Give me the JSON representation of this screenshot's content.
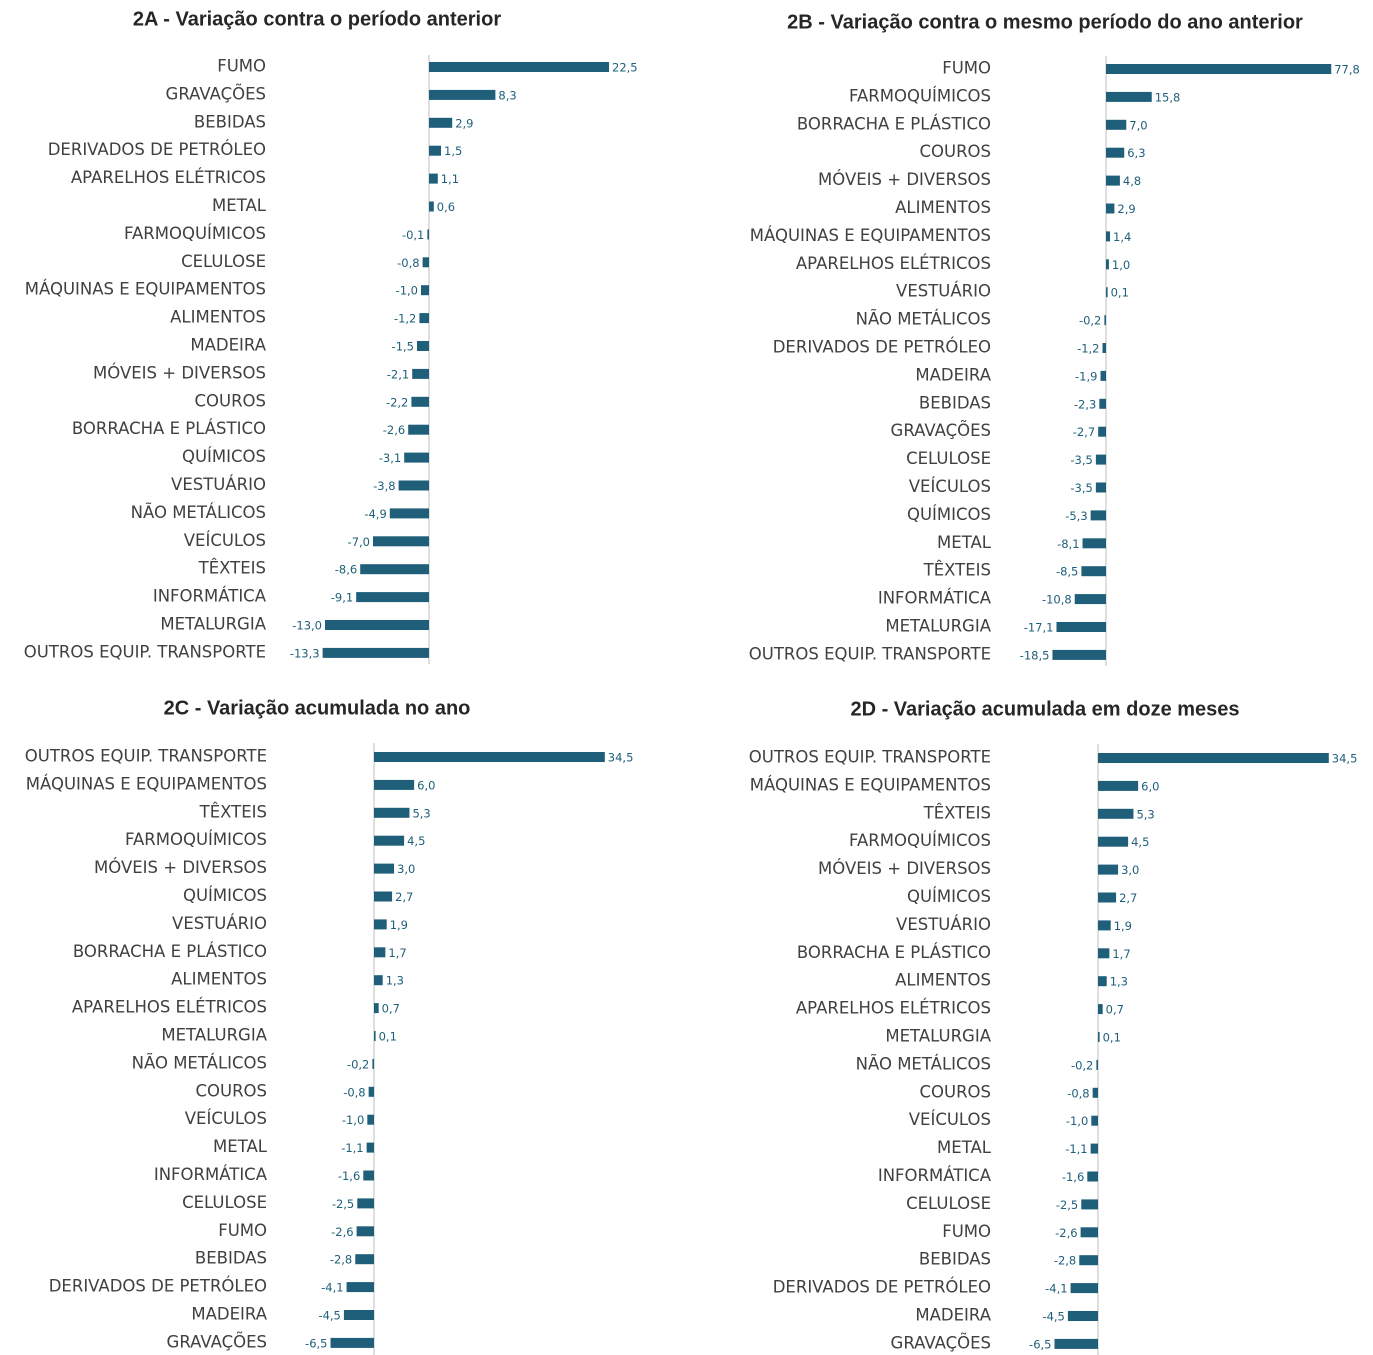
{
  "colors": {
    "bar": "#1f5f7a",
    "label": "#1f5f7a",
    "text": "#404040",
    "axis": "#bfbfbf"
  },
  "chart_data": [
    {
      "type": "bar",
      "orientation": "horizontal",
      "title": "2A - Variação contra o período anterior",
      "categories": [
        "FUMO",
        "GRAVAÇÕES",
        "BEBIDAS",
        "DERIVADOS DE PETRÓLEO",
        "APARELHOS ELÉTRICOS",
        "METAL",
        "FARMOQUÍMICOS",
        "CELULOSE",
        "MÁQUINAS E EQUIPAMENTOS",
        "ALIMENTOS",
        "MADEIRA",
        "MÓVEIS + DIVERSOS",
        "COUROS",
        "BORRACHA E PLÁSTICO",
        "QUÍMICOS",
        "VESTUÁRIO",
        "NÃO METÁLICOS",
        "VEÍCULOS",
        "TÊXTEIS",
        "INFORMÁTICA",
        "METALURGIA",
        "OUTROS EQUIP. TRANSPORTE"
      ],
      "values": [
        22.5,
        8.3,
        2.9,
        1.5,
        1.1,
        0.6,
        -0.1,
        -0.8,
        -1.0,
        -1.2,
        -1.5,
        -2.1,
        -2.2,
        -2.6,
        -3.1,
        -3.8,
        -4.9,
        -7.0,
        -8.6,
        -9.1,
        -13.0,
        -13.3
      ],
      "value_labels": [
        "22,5",
        "8,3",
        "2,9",
        "1,5",
        "1,1",
        "0,6",
        "-0,1",
        "-0,8",
        "-1,0",
        "-1,2",
        "-1,5",
        "-2,1",
        "-2,2",
        "-2,6",
        "-3,1",
        "-3,8",
        "-4,9",
        "-7,0",
        "-8,6",
        "-9,1",
        "-13,0",
        "-13,3"
      ],
      "grid": false,
      "legend": "none"
    },
    {
      "type": "bar",
      "orientation": "horizontal",
      "title": "2B - Variação contra o mesmo período do ano anterior",
      "categories": [
        "FUMO",
        "FARMOQUÍMICOS",
        "BORRACHA E PLÁSTICO",
        "COUROS",
        "MÓVEIS + DIVERSOS",
        "ALIMENTOS",
        "MÁQUINAS E EQUIPAMENTOS",
        "APARELHOS ELÉTRICOS",
        "VESTUÁRIO",
        "NÃO METÁLICOS",
        "DERIVADOS DE PETRÓLEO",
        "MADEIRA",
        "BEBIDAS",
        "GRAVAÇÕES",
        "CELULOSE",
        "VEÍCULOS",
        "QUÍMICOS",
        "METAL",
        "TÊXTEIS",
        "INFORMÁTICA",
        "METALURGIA",
        "OUTROS EQUIP. TRANSPORTE"
      ],
      "values": [
        77.8,
        15.8,
        7.0,
        6.3,
        4.8,
        2.9,
        1.4,
        1.0,
        0.1,
        -0.2,
        -1.2,
        -1.9,
        -2.3,
        -2.7,
        -3.5,
        -3.5,
        -5.3,
        -8.1,
        -8.5,
        -10.8,
        -17.1,
        -18.5
      ],
      "value_labels": [
        "77,8",
        "15,8",
        "7,0",
        "6,3",
        "4,8",
        "2,9",
        "1,4",
        "1,0",
        "0,1",
        "-0,2",
        "-1,2",
        "-1,9",
        "-2,3",
        "-2,7",
        "-3,5",
        "-3,5",
        "-5,3",
        "-8,1",
        "-8,5",
        "-10,8",
        "-17,1",
        "-18,5"
      ],
      "grid": false,
      "legend": "none"
    },
    {
      "type": "bar",
      "orientation": "horizontal",
      "title": "2C - Variação acumulada no ano",
      "categories": [
        "OUTROS EQUIP. TRANSPORTE",
        "MÁQUINAS E EQUIPAMENTOS",
        "TÊXTEIS",
        "FARMOQUÍMICOS",
        "MÓVEIS + DIVERSOS",
        "QUÍMICOS",
        "VESTUÁRIO",
        "BORRACHA E PLÁSTICO",
        "ALIMENTOS",
        "APARELHOS ELÉTRICOS",
        "METALURGIA",
        "NÃO METÁLICOS",
        "COUROS",
        "VEÍCULOS",
        "METAL",
        "INFORMÁTICA",
        "CELULOSE",
        "FUMO",
        "BEBIDAS",
        "DERIVADOS DE PETRÓLEO",
        "MADEIRA",
        "GRAVAÇÕES"
      ],
      "values": [
        34.5,
        6.0,
        5.3,
        4.5,
        3.0,
        2.7,
        1.9,
        1.7,
        1.3,
        0.7,
        0.1,
        -0.2,
        -0.8,
        -1.0,
        -1.1,
        -1.6,
        -2.5,
        -2.6,
        -2.8,
        -4.1,
        -4.5,
        -6.5
      ],
      "value_labels": [
        "34,5",
        "6,0",
        "5,3",
        "4,5",
        "3,0",
        "2,7",
        "1,9",
        "1,7",
        "1,3",
        "0,7",
        "0,1",
        "-0,2",
        "-0,8",
        "-1,0",
        "-1,1",
        "-1,6",
        "-2,5",
        "-2,6",
        "-2,8",
        "-4,1",
        "-4,5",
        "-6,5"
      ],
      "grid": false,
      "legend": "none"
    },
    {
      "type": "bar",
      "orientation": "horizontal",
      "title": "2D - Variação acumulada em doze meses",
      "categories": [
        "OUTROS EQUIP. TRANSPORTE",
        "MÁQUINAS E EQUIPAMENTOS",
        "TÊXTEIS",
        "FARMOQUÍMICOS",
        "MÓVEIS + DIVERSOS",
        "QUÍMICOS",
        "VESTUÁRIO",
        "BORRACHA E PLÁSTICO",
        "ALIMENTOS",
        "APARELHOS ELÉTRICOS",
        "METALURGIA",
        "NÃO METÁLICOS",
        "COUROS",
        "VEÍCULOS",
        "METAL",
        "INFORMÁTICA",
        "CELULOSE",
        "FUMO",
        "BEBIDAS",
        "DERIVADOS DE PETRÓLEO",
        "MADEIRA",
        "GRAVAÇÕES"
      ],
      "values": [
        34.5,
        6.0,
        5.3,
        4.5,
        3.0,
        2.7,
        1.9,
        1.7,
        1.3,
        0.7,
        0.1,
        -0.2,
        -0.8,
        -1.0,
        -1.1,
        -1.6,
        -2.5,
        -2.6,
        -2.8,
        -4.1,
        -4.5,
        -6.5
      ],
      "value_labels": [
        "34,5",
        "6,0",
        "5,3",
        "4,5",
        "3,0",
        "2,7",
        "1,9",
        "1,7",
        "1,3",
        "0,7",
        "0,1",
        "-0,2",
        "-0,8",
        "-1,0",
        "-1,1",
        "-1,6",
        "-2,5",
        "-2,6",
        "-2,8",
        "-4,1",
        "-4,5",
        "-6,5"
      ],
      "grid": false,
      "legend": "none"
    }
  ]
}
